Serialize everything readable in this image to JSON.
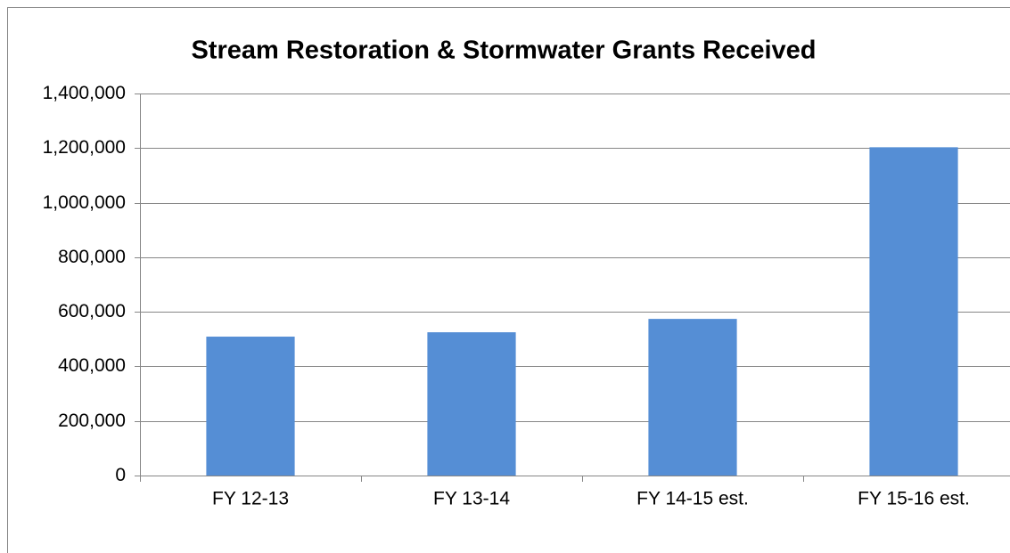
{
  "chart_data": {
    "type": "bar",
    "title": "Stream Restoration & Stormwater Grants Received",
    "categories": [
      "FY 12-13",
      "FY 13-14",
      "FY 14-15 est.",
      "FY 15-16 est."
    ],
    "values": [
      509000,
      525000,
      574000,
      1203000
    ],
    "color": "#558ed5",
    "ylim": [
      0,
      1400000
    ],
    "yticks": [
      0,
      {
        "value": 200000,
        "label": "200,000"
      },
      {
        "value": 400000,
        "label": "400,000"
      },
      {
        "value": 600000,
        "label": "600,000"
      },
      {
        "value": 800000,
        "label": "800,000"
      },
      {
        "value": 1000000,
        "label": "1,000,000"
      },
      {
        "value": 1200000,
        "label": "1,200,000"
      },
      {
        "value": 1400000,
        "label": "1,400,000"
      }
    ],
    "grid": true
  }
}
